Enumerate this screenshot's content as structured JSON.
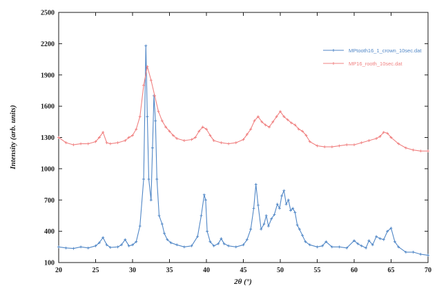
{
  "chart_data": {
    "type": "line",
    "title": "",
    "xlabel": "2θ (°)",
    "ylabel": "Intensity (arb. units)",
    "xlim": [
      20,
      70
    ],
    "ylim": [
      100,
      2500
    ],
    "x_ticks": [
      20,
      25,
      30,
      35,
      40,
      45,
      50,
      55,
      60,
      65,
      70
    ],
    "y_ticks": [
      100,
      400,
      700,
      1000,
      1300,
      1600,
      1900,
      2200,
      2500
    ],
    "legend_position": "top-right",
    "grid": false,
    "series": [
      {
        "name": "MPtooth16_1_crown_10sec.dat",
        "color": "#4f86c6",
        "marker": "plus",
        "x": [
          20,
          21,
          22,
          23,
          24,
          25,
          25.5,
          26,
          26.5,
          27,
          28,
          28.5,
          29,
          29.5,
          30,
          30.5,
          31,
          31.5,
          31.8,
          32,
          32.2,
          32.5,
          32.7,
          32.9,
          33.1,
          33.3,
          33.6,
          34,
          34.3,
          34.7,
          35.2,
          36,
          37,
          38,
          38.8,
          39.3,
          39.7,
          39.9,
          40.1,
          40.5,
          41,
          41.6,
          42,
          42.4,
          43,
          44,
          45,
          45.5,
          46,
          46.4,
          46.7,
          47,
          47.4,
          47.8,
          48.1,
          48.4,
          48.8,
          49.2,
          49.6,
          49.9,
          50.2,
          50.5,
          50.8,
          51.1,
          51.4,
          51.7,
          52,
          52.3,
          52.6,
          53,
          53.4,
          54,
          55,
          55.7,
          56.2,
          57,
          58,
          59,
          60,
          60.5,
          61,
          61.6,
          62,
          62.5,
          63,
          63.5,
          64,
          64.5,
          65,
          65.5,
          66,
          67,
          68,
          69,
          70
        ],
        "y": [
          250,
          240,
          235,
          250,
          240,
          260,
          290,
          340,
          270,
          245,
          250,
          270,
          320,
          260,
          270,
          300,
          450,
          900,
          2180,
          1500,
          900,
          700,
          1200,
          1700,
          1460,
          900,
          550,
          470,
          380,
          320,
          290,
          270,
          250,
          260,
          350,
          550,
          750,
          700,
          400,
          300,
          260,
          280,
          330,
          280,
          260,
          250,
          270,
          320,
          420,
          620,
          850,
          650,
          420,
          470,
          550,
          450,
          520,
          560,
          660,
          620,
          740,
          790,
          660,
          700,
          600,
          620,
          580,
          460,
          420,
          360,
          300,
          270,
          250,
          260,
          300,
          250,
          250,
          240,
          310,
          280,
          260,
          240,
          310,
          270,
          350,
          330,
          320,
          400,
          430,
          300,
          250,
          200,
          200,
          180,
          170
        ]
      },
      {
        "name": "MP16_rooth_10sec.dat",
        "color": "#f08080",
        "marker": "plus",
        "x": [
          20,
          21,
          22,
          23,
          24,
          25,
          25.5,
          26,
          26.5,
          27,
          28,
          29,
          29.5,
          30,
          30.5,
          31,
          31.5,
          32,
          32.5,
          33,
          33.5,
          34,
          34.5,
          35,
          35.5,
          36,
          37,
          38,
          38.5,
          39,
          39.5,
          40,
          40.5,
          41,
          42,
          43,
          44,
          45,
          45.5,
          46,
          46.5,
          47,
          47.5,
          48,
          48.5,
          49,
          49.5,
          50,
          50.5,
          51,
          51.5,
          52,
          52.5,
          53,
          53.5,
          54,
          55,
          56,
          57,
          58,
          59,
          60,
          61,
          62,
          63,
          63.5,
          64,
          64.5,
          65,
          66,
          67,
          68,
          69,
          70
        ],
        "y": [
          1300,
          1250,
          1230,
          1240,
          1240,
          1260,
          1300,
          1350,
          1250,
          1240,
          1250,
          1270,
          1300,
          1320,
          1380,
          1500,
          1800,
          1980,
          1850,
          1700,
          1550,
          1460,
          1400,
          1360,
          1320,
          1290,
          1270,
          1280,
          1300,
          1360,
          1400,
          1380,
          1320,
          1270,
          1250,
          1240,
          1250,
          1280,
          1330,
          1380,
          1460,
          1500,
          1450,
          1420,
          1400,
          1450,
          1500,
          1550,
          1500,
          1470,
          1440,
          1420,
          1380,
          1360,
          1320,
          1260,
          1220,
          1210,
          1210,
          1220,
          1230,
          1230,
          1250,
          1270,
          1290,
          1310,
          1350,
          1340,
          1300,
          1240,
          1200,
          1180,
          1170,
          1170
        ]
      }
    ]
  }
}
